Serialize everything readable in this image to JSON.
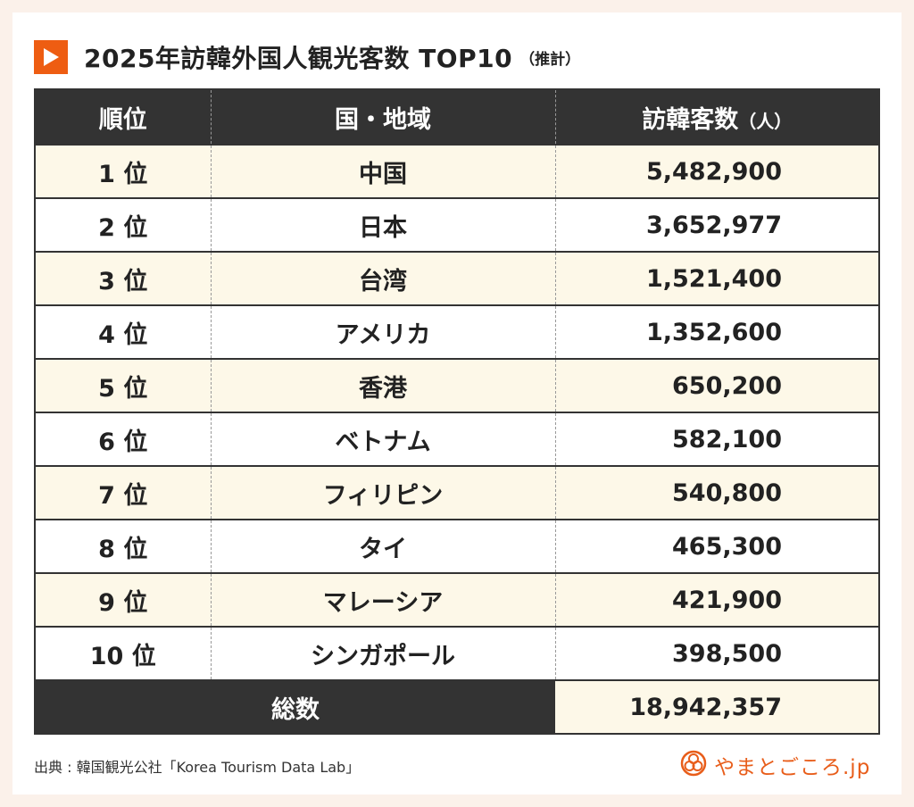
{
  "title": {
    "main": "2025年訪韓外国人観光客数 TOP10",
    "sub": "（推計）"
  },
  "colors": {
    "accent": "#ee5d12",
    "header_bg": "#333333",
    "row_highlight": "#fdf8e8",
    "page_bg": "#fbf1ea"
  },
  "table": {
    "headers": {
      "rank": "順位",
      "region": "国・地域",
      "visitors": "訪韓客数",
      "visitors_unit": "（人）"
    },
    "rows": [
      {
        "rank": "1 位",
        "region": "中国",
        "visitors": "5,482,900"
      },
      {
        "rank": "2 位",
        "region": "日本",
        "visitors": "3,652,977"
      },
      {
        "rank": "3 位",
        "region": "台湾",
        "visitors": "1,521,400"
      },
      {
        "rank": "4 位",
        "region": "アメリカ",
        "visitors": "1,352,600"
      },
      {
        "rank": "5 位",
        "region": "香港",
        "visitors": "650,200"
      },
      {
        "rank": "6 位",
        "region": "ベトナム",
        "visitors": "582,100"
      },
      {
        "rank": "7 位",
        "region": "フィリピン",
        "visitors": "540,800"
      },
      {
        "rank": "8 位",
        "region": "タイ",
        "visitors": "465,300"
      },
      {
        "rank": "9 位",
        "region": "マレーシア",
        "visitors": "421,900"
      },
      {
        "rank": "10 位",
        "region": "シンガポール",
        "visitors": "398,500"
      }
    ],
    "total": {
      "label": "総数",
      "value": "18,942,357"
    }
  },
  "footer": {
    "source": "出典 : 韓国観光公社「Korea Tourism Data Lab」",
    "brand": "やまとごころ.jp"
  },
  "icons": {
    "title": "play-triangle-icon",
    "brand": "yamatogokoro-logo-icon"
  }
}
